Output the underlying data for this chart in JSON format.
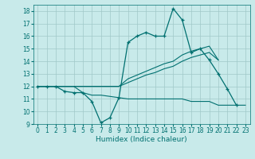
{
  "xlabel": "Humidex (Indice chaleur)",
  "bg_color": "#c8eaea",
  "grid_color": "#a0c8c8",
  "line_color": "#007070",
  "xlim": [
    -0.5,
    23.5
  ],
  "ylim": [
    9,
    18.5
  ],
  "yticks": [
    9,
    10,
    11,
    12,
    13,
    14,
    15,
    16,
    17,
    18
  ],
  "xticks": [
    0,
    1,
    2,
    3,
    4,
    5,
    6,
    7,
    8,
    9,
    10,
    11,
    12,
    13,
    14,
    15,
    16,
    17,
    18,
    19,
    20,
    21,
    22,
    23
  ],
  "line_main_x": [
    0,
    1,
    2,
    3,
    4,
    5,
    6,
    7,
    8,
    9,
    10,
    11,
    12,
    13,
    14,
    15,
    16,
    17,
    18,
    19,
    20,
    21,
    22
  ],
  "line_main_y": [
    12,
    12,
    12,
    11.6,
    11.5,
    11.5,
    10.8,
    9.1,
    9.5,
    11.1,
    15.5,
    16.0,
    16.3,
    16.0,
    16.0,
    18.2,
    17.3,
    14.7,
    15.0,
    14.1,
    13.0,
    11.8,
    10.5
  ],
  "line_upper_x": [
    0,
    1,
    2,
    3,
    4,
    5,
    6,
    7,
    8,
    9,
    10,
    11,
    12,
    13,
    14,
    15,
    16,
    17,
    18,
    19,
    20
  ],
  "line_upper_y": [
    12,
    12,
    12,
    12,
    12,
    12,
    12,
    12,
    12,
    12,
    12.6,
    12.9,
    13.2,
    13.5,
    13.8,
    14.0,
    14.5,
    14.8,
    15.0,
    15.2,
    14.1
  ],
  "line_mid_x": [
    0,
    1,
    2,
    3,
    4,
    5,
    6,
    7,
    8,
    9,
    10,
    11,
    12,
    13,
    14,
    15,
    16,
    17,
    18,
    19,
    20
  ],
  "line_mid_y": [
    12,
    12,
    12,
    12,
    12,
    12,
    12,
    12,
    12,
    12,
    12.3,
    12.6,
    12.9,
    13.1,
    13.4,
    13.6,
    14.0,
    14.3,
    14.5,
    14.7,
    14.1
  ],
  "line_low_x": [
    0,
    1,
    2,
    3,
    4,
    5,
    6,
    7,
    8,
    9,
    10,
    11,
    12,
    13,
    14,
    15,
    16,
    17,
    18,
    19,
    20,
    21,
    22,
    23
  ],
  "line_low_y": [
    12,
    12,
    12,
    12,
    12,
    11.5,
    11.3,
    11.3,
    11.2,
    11.1,
    11.0,
    11.0,
    11.0,
    11.0,
    11.0,
    11.0,
    11.0,
    10.8,
    10.8,
    10.8,
    10.5,
    10.5,
    10.5,
    10.5
  ]
}
